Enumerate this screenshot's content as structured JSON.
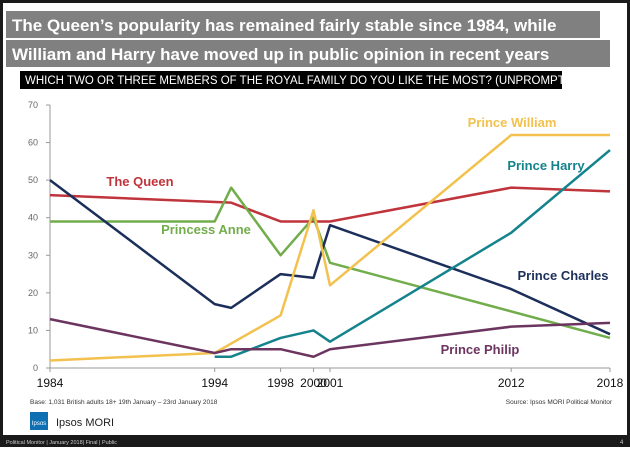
{
  "slide": {
    "title_line1": "The Queen’s popularity has remained fairly stable since 1984, while",
    "title_line2": "William and Harry have moved up in public opinion in recent years",
    "question": "WHICH TWO OR THREE MEMBERS OF THE ROYAL FAMILY DO YOU LIKE THE MOST? (UNPROMPTED)",
    "base": "Base: 1,031 British adults 18+ 19th January – 23rd January 2018",
    "source": "Source: Ipsos MORI Political Monitor",
    "logo": "Ipsos",
    "brand": "Ipsos MORI",
    "footer": "Political Monitor | January 2018| Final | Public",
    "page": "4"
  },
  "chart_data": {
    "type": "line",
    "xlim": [
      1984,
      2018
    ],
    "xticks": [
      1984,
      1994,
      1998,
      2000,
      2001,
      2012,
      2018
    ],
    "ylim": [
      0,
      70
    ],
    "yticks": [
      0,
      10,
      20,
      30,
      40,
      50,
      60,
      70
    ],
    "series": [
      {
        "name": "The Queen",
        "color": "#c0343c",
        "x": [
          1984,
          1995,
          1998,
          2001,
          2012,
          2018
        ],
        "values": [
          46,
          44,
          39,
          39,
          48,
          47
        ]
      },
      {
        "name": "Princess Anne",
        "color": "#72ad4c",
        "x": [
          1984,
          1994,
          1995,
          1998,
          2000,
          2001,
          2018
        ],
        "values": [
          39,
          39,
          48,
          30,
          40,
          28,
          8
        ]
      },
      {
        "name": "Prince Charles",
        "color": "#1c2f5a",
        "x": [
          1984,
          1994,
          1995,
          1998,
          2000,
          2001,
          2012,
          2018
        ],
        "values": [
          50,
          17,
          16,
          25,
          24,
          38,
          21,
          9
        ]
      },
      {
        "name": "Prince William",
        "color": "#f2c14e",
        "x": [
          1984,
          1994,
          1998,
          2000,
          2001,
          2012,
          2018
        ],
        "values": [
          2,
          4,
          14,
          42,
          22,
          62,
          62
        ]
      },
      {
        "name": "Prince Harry",
        "color": "#14838c",
        "x": [
          1994,
          1995,
          1998,
          2000,
          2001,
          2012,
          2018
        ],
        "values": [
          3,
          3,
          8,
          10,
          7,
          36,
          58
        ]
      },
      {
        "name": "Prince Philip",
        "color": "#6b3560",
        "x": [
          1984,
          1994,
          1995,
          1998,
          2000,
          2001,
          2012,
          2018
        ],
        "values": [
          13,
          4,
          5,
          5,
          3,
          5,
          11,
          12
        ]
      }
    ]
  }
}
